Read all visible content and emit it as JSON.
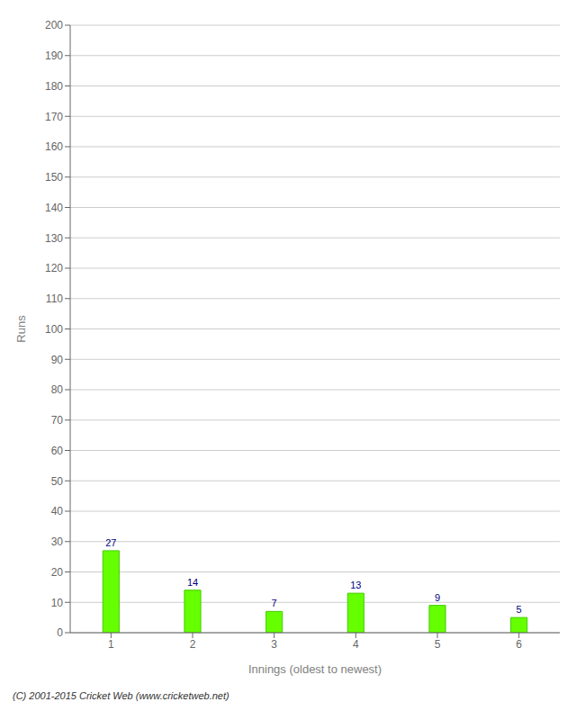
{
  "chart_data": {
    "type": "bar",
    "categories": [
      "1",
      "2",
      "3",
      "4",
      "5",
      "6"
    ],
    "values": [
      27,
      14,
      7,
      13,
      9,
      5
    ],
    "color": "#66ff00",
    "xlabel": "Innings (oldest to newest)",
    "ylabel": "Runs",
    "ylim": [
      0,
      200
    ],
    "yticks": [
      0,
      10,
      20,
      30,
      40,
      50,
      60,
      70,
      80,
      90,
      100,
      110,
      120,
      130,
      140,
      150,
      160,
      170,
      180,
      190,
      200
    ],
    "grid": true,
    "data_labels": true,
    "annotations": [
      "(C) 2001-2015 Cricket Web (www.cricketweb.net)"
    ]
  }
}
